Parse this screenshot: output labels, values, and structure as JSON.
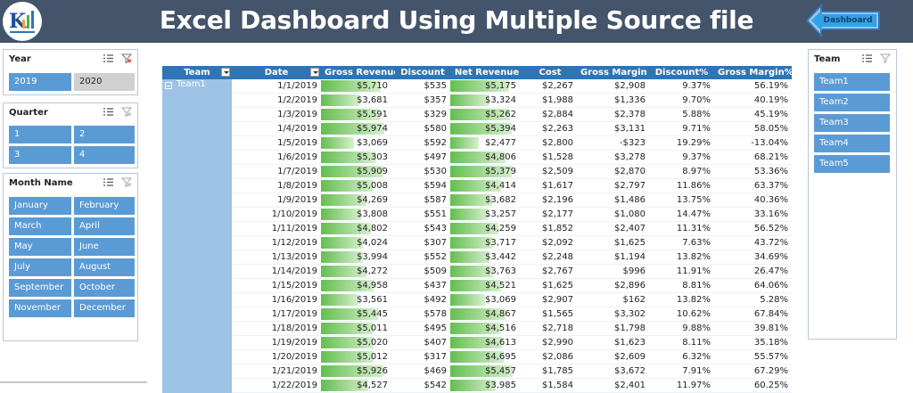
{
  "header": {
    "title": "Excel Dashboard Using Multiple Source file",
    "dashboard_button": "Dashboard"
  },
  "slicers": {
    "year": {
      "title": "Year",
      "items": [
        "2019",
        "2020"
      ]
    },
    "quarter": {
      "title": "Quarter",
      "items": [
        "1",
        "2",
        "3",
        "4"
      ]
    },
    "month": {
      "title": "Month Name",
      "items": [
        "January",
        "February",
        "March",
        "April",
        "May",
        "June",
        "July",
        "August",
        "September",
        "October",
        "November",
        "December"
      ]
    },
    "team": {
      "title": "Team",
      "items": [
        "Team1",
        "Team2",
        "Team3",
        "Team4",
        "Team5"
      ]
    }
  },
  "table": {
    "columns": [
      "Team",
      "Date",
      "Gross Revenue",
      "Discount",
      "Net Revenue",
      "Cost",
      "Gross Margin",
      "Discount%",
      "Gross Margin%"
    ],
    "team_label": "Team1",
    "max_gross_revenue": 5974,
    "max_net_revenue": 5457,
    "rows": [
      {
        "date": "1/1/2019",
        "gross": "$5,710",
        "gv": 5710,
        "discount": "$535",
        "net": "$5,175",
        "nv": 5175,
        "cost": "$2,267",
        "margin": "$2,908",
        "disc_pct": "9.37%",
        "margin_pct": "56.19%"
      },
      {
        "date": "1/2/2019",
        "gross": "$3,681",
        "gv": 3681,
        "discount": "$357",
        "net": "$3,324",
        "nv": 3324,
        "cost": "$1,988",
        "margin": "$1,336",
        "disc_pct": "9.70%",
        "margin_pct": "40.19%"
      },
      {
        "date": "1/3/2019",
        "gross": "$5,591",
        "gv": 5591,
        "discount": "$329",
        "net": "$5,262",
        "nv": 5262,
        "cost": "$2,884",
        "margin": "$2,378",
        "disc_pct": "5.88%",
        "margin_pct": "45.19%"
      },
      {
        "date": "1/4/2019",
        "gross": "$5,974",
        "gv": 5974,
        "discount": "$580",
        "net": "$5,394",
        "nv": 5394,
        "cost": "$2,263",
        "margin": "$3,131",
        "disc_pct": "9.71%",
        "margin_pct": "58.05%"
      },
      {
        "date": "1/5/2019",
        "gross": "$3,069",
        "gv": 3069,
        "discount": "$592",
        "net": "$2,477",
        "nv": 2477,
        "cost": "$2,800",
        "margin": "-$323",
        "disc_pct": "19.29%",
        "margin_pct": "-13.04%"
      },
      {
        "date": "1/6/2019",
        "gross": "$5,303",
        "gv": 5303,
        "discount": "$497",
        "net": "$4,806",
        "nv": 4806,
        "cost": "$1,528",
        "margin": "$3,278",
        "disc_pct": "9.37%",
        "margin_pct": "68.21%"
      },
      {
        "date": "1/7/2019",
        "gross": "$5,909",
        "gv": 5909,
        "discount": "$530",
        "net": "$5,379",
        "nv": 5379,
        "cost": "$2,509",
        "margin": "$2,870",
        "disc_pct": "8.97%",
        "margin_pct": "53.36%"
      },
      {
        "date": "1/8/2019",
        "gross": "$5,008",
        "gv": 5008,
        "discount": "$594",
        "net": "$4,414",
        "nv": 4414,
        "cost": "$1,617",
        "margin": "$2,797",
        "disc_pct": "11.86%",
        "margin_pct": "63.37%"
      },
      {
        "date": "1/9/2019",
        "gross": "$4,269",
        "gv": 4269,
        "discount": "$587",
        "net": "$3,682",
        "nv": 3682,
        "cost": "$2,196",
        "margin": "$1,486",
        "disc_pct": "13.75%",
        "margin_pct": "40.36%"
      },
      {
        "date": "1/10/2019",
        "gross": "$3,808",
        "gv": 3808,
        "discount": "$551",
        "net": "$3,257",
        "nv": 3257,
        "cost": "$2,177",
        "margin": "$1,080",
        "disc_pct": "14.47%",
        "margin_pct": "33.16%"
      },
      {
        "date": "1/11/2019",
        "gross": "$4,802",
        "gv": 4802,
        "discount": "$543",
        "net": "$4,259",
        "nv": 4259,
        "cost": "$1,852",
        "margin": "$2,407",
        "disc_pct": "11.31%",
        "margin_pct": "56.52%"
      },
      {
        "date": "1/12/2019",
        "gross": "$4,024",
        "gv": 4024,
        "discount": "$307",
        "net": "$3,717",
        "nv": 3717,
        "cost": "$2,092",
        "margin": "$1,625",
        "disc_pct": "7.63%",
        "margin_pct": "43.72%"
      },
      {
        "date": "1/13/2019",
        "gross": "$3,994",
        "gv": 3994,
        "discount": "$552",
        "net": "$3,442",
        "nv": 3442,
        "cost": "$2,248",
        "margin": "$1,194",
        "disc_pct": "13.82%",
        "margin_pct": "34.69%"
      },
      {
        "date": "1/14/2019",
        "gross": "$4,272",
        "gv": 4272,
        "discount": "$509",
        "net": "$3,763",
        "nv": 3763,
        "cost": "$2,767",
        "margin": "$996",
        "disc_pct": "11.91%",
        "margin_pct": "26.47%"
      },
      {
        "date": "1/15/2019",
        "gross": "$4,958",
        "gv": 4958,
        "discount": "$437",
        "net": "$4,521",
        "nv": 4521,
        "cost": "$1,625",
        "margin": "$2,896",
        "disc_pct": "8.81%",
        "margin_pct": "64.06%"
      },
      {
        "date": "1/16/2019",
        "gross": "$3,561",
        "gv": 3561,
        "discount": "$492",
        "net": "$3,069",
        "nv": 3069,
        "cost": "$2,907",
        "margin": "$162",
        "disc_pct": "13.82%",
        "margin_pct": "5.28%"
      },
      {
        "date": "1/17/2019",
        "gross": "$5,445",
        "gv": 5445,
        "discount": "$578",
        "net": "$4,867",
        "nv": 4867,
        "cost": "$1,565",
        "margin": "$3,302",
        "disc_pct": "10.62%",
        "margin_pct": "67.84%"
      },
      {
        "date": "1/18/2019",
        "gross": "$5,011",
        "gv": 5011,
        "discount": "$495",
        "net": "$4,516",
        "nv": 4516,
        "cost": "$2,718",
        "margin": "$1,798",
        "disc_pct": "9.88%",
        "margin_pct": "39.81%"
      },
      {
        "date": "1/19/2019",
        "gross": "$5,020",
        "gv": 5020,
        "discount": "$407",
        "net": "$4,613",
        "nv": 4613,
        "cost": "$2,990",
        "margin": "$1,623",
        "disc_pct": "8.11%",
        "margin_pct": "35.18%"
      },
      {
        "date": "1/20/2019",
        "gross": "$5,012",
        "gv": 5012,
        "discount": "$317",
        "net": "$4,695",
        "nv": 4695,
        "cost": "$2,086",
        "margin": "$2,609",
        "disc_pct": "6.32%",
        "margin_pct": "55.57%"
      },
      {
        "date": "1/21/2019",
        "gross": "$5,926",
        "gv": 5926,
        "discount": "$469",
        "net": "$5,457",
        "nv": 5457,
        "cost": "$1,785",
        "margin": "$3,672",
        "disc_pct": "7.91%",
        "margin_pct": "67.29%"
      },
      {
        "date": "1/22/2019",
        "gross": "$4,527",
        "gv": 4527,
        "discount": "$542",
        "net": "$3,985",
        "nv": 3985,
        "cost": "$1,584",
        "margin": "$2,401",
        "disc_pct": "11.97%",
        "margin_pct": "60.25%"
      }
    ]
  }
}
